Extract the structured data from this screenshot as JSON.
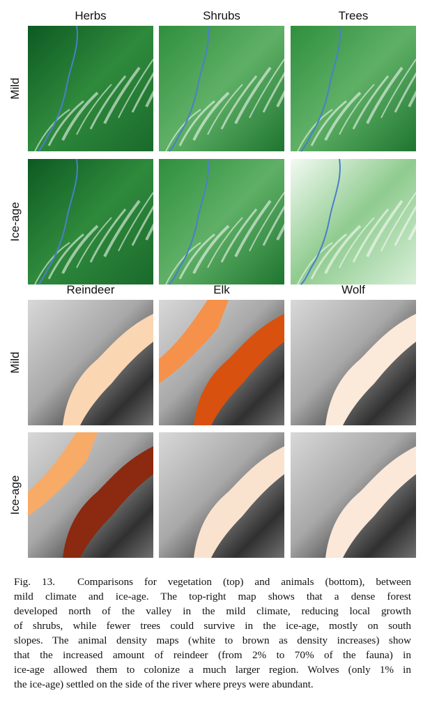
{
  "vegetation": {
    "columns": [
      "Herbs",
      "Shrubs",
      "Trees"
    ],
    "rows": [
      "Mild",
      "Ice-age"
    ]
  },
  "animals": {
    "columns": [
      "Reindeer",
      "Elk",
      "Wolf"
    ],
    "rows": [
      "Mild",
      "Ice-age"
    ]
  },
  "caption": {
    "label": "Fig. 13.",
    "lines": [
      "Comparisons for vegetation (top) and animals (bottom), between",
      "mild climate and ice-age. The top-right map shows that a dense forest",
      "developed north of the valley in the mild climate, reducing local growth",
      "of shrubs, while fewer trees could survive in the ice-age, mostly on south",
      "slopes. The animal density maps (white to brown as density increases) show",
      "that the increased amount of reindeer (from 2% to 70% of the fauna) in",
      "ice-age allowed them to colonize a much larger region. Wolves (only 1% in",
      "the ice-age) settled on the side of the river where preys were abundant."
    ]
  }
}
